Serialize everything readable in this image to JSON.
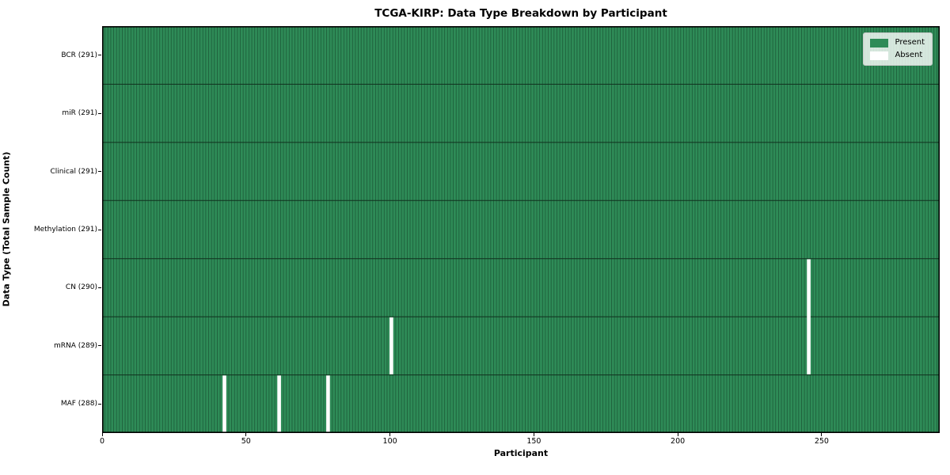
{
  "chart_data": {
    "type": "heatmap",
    "title": "TCGA-KIRP: Data Type Breakdown by Participant",
    "xlabel": "Participant",
    "ylabel": "Data Type (Total Sample Count)",
    "n_participants": 291,
    "xlim": [
      0,
      291
    ],
    "x_ticks": [
      0,
      50,
      100,
      150,
      200,
      250
    ],
    "rows": [
      {
        "label": "BCR (291)",
        "data_type": "BCR",
        "present_count": 291,
        "absent": []
      },
      {
        "label": "miR (291)",
        "data_type": "miR",
        "present_count": 291,
        "absent": []
      },
      {
        "label": "Clinical (291)",
        "data_type": "Clinical",
        "present_count": 291,
        "absent": []
      },
      {
        "label": "Methylation (291)",
        "data_type": "Methylation",
        "present_count": 291,
        "absent": []
      },
      {
        "label": "CN (290)",
        "data_type": "CN",
        "present_count": 290,
        "absent": [
          245
        ]
      },
      {
        "label": "mRNA (289)",
        "data_type": "mRNA",
        "present_count": 289,
        "absent": [
          100,
          245
        ]
      },
      {
        "label": "MAF (288)",
        "data_type": "MAF",
        "present_count": 288,
        "absent": [
          42,
          61,
          78
        ]
      }
    ],
    "legend": {
      "position": "upper right",
      "items": [
        {
          "label": "Present",
          "color": "#2e8b57"
        },
        {
          "label": "Absent",
          "color": "#ffffff"
        }
      ]
    },
    "colors": {
      "present": "#2e8b57",
      "absent": "#ffffff",
      "cell_edge": "#1d5c39",
      "row_divider": "#10301e",
      "spine": "#000000",
      "background": "#ffffff",
      "text": "#000000"
    },
    "grid": false
  }
}
